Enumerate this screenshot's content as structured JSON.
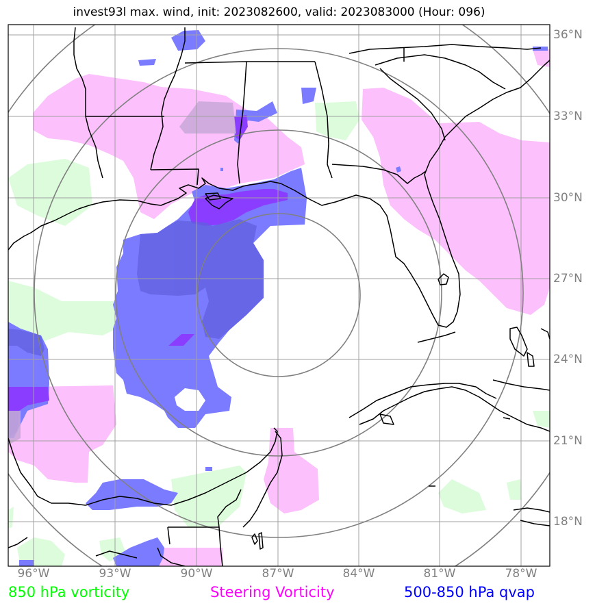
{
  "title": "invest93l max. wind, init: 2023082600, valid: 2023083000 (Hour: 096)",
  "axes": {
    "lon_labels": [
      "96°W",
      "93°W",
      "90°W",
      "87°W",
      "84°W",
      "81°W",
      "78°W"
    ],
    "lat_labels": [
      "36°N",
      "33°N",
      "30°N",
      "27°N",
      "24°N",
      "21°N",
      "18°N"
    ]
  },
  "legend": {
    "vorticity_850": {
      "label": "850 hPa vorticity",
      "color": "#00ff00"
    },
    "steering_vorticity": {
      "label": "Steering Vorticity",
      "color": "#ff00ff"
    },
    "qvap": {
      "label": "500-850 hPa qvap",
      "color": "#0000ff"
    }
  },
  "colors": {
    "green_fill": "#dcfcdc",
    "pink_fill": "#fcc0fc",
    "blue_fill": "#7b7bff",
    "purple_fill": "#8a3cff",
    "gridline": "#a0a0a0",
    "range_rings": "#808080",
    "coastline": "#000000"
  }
}
